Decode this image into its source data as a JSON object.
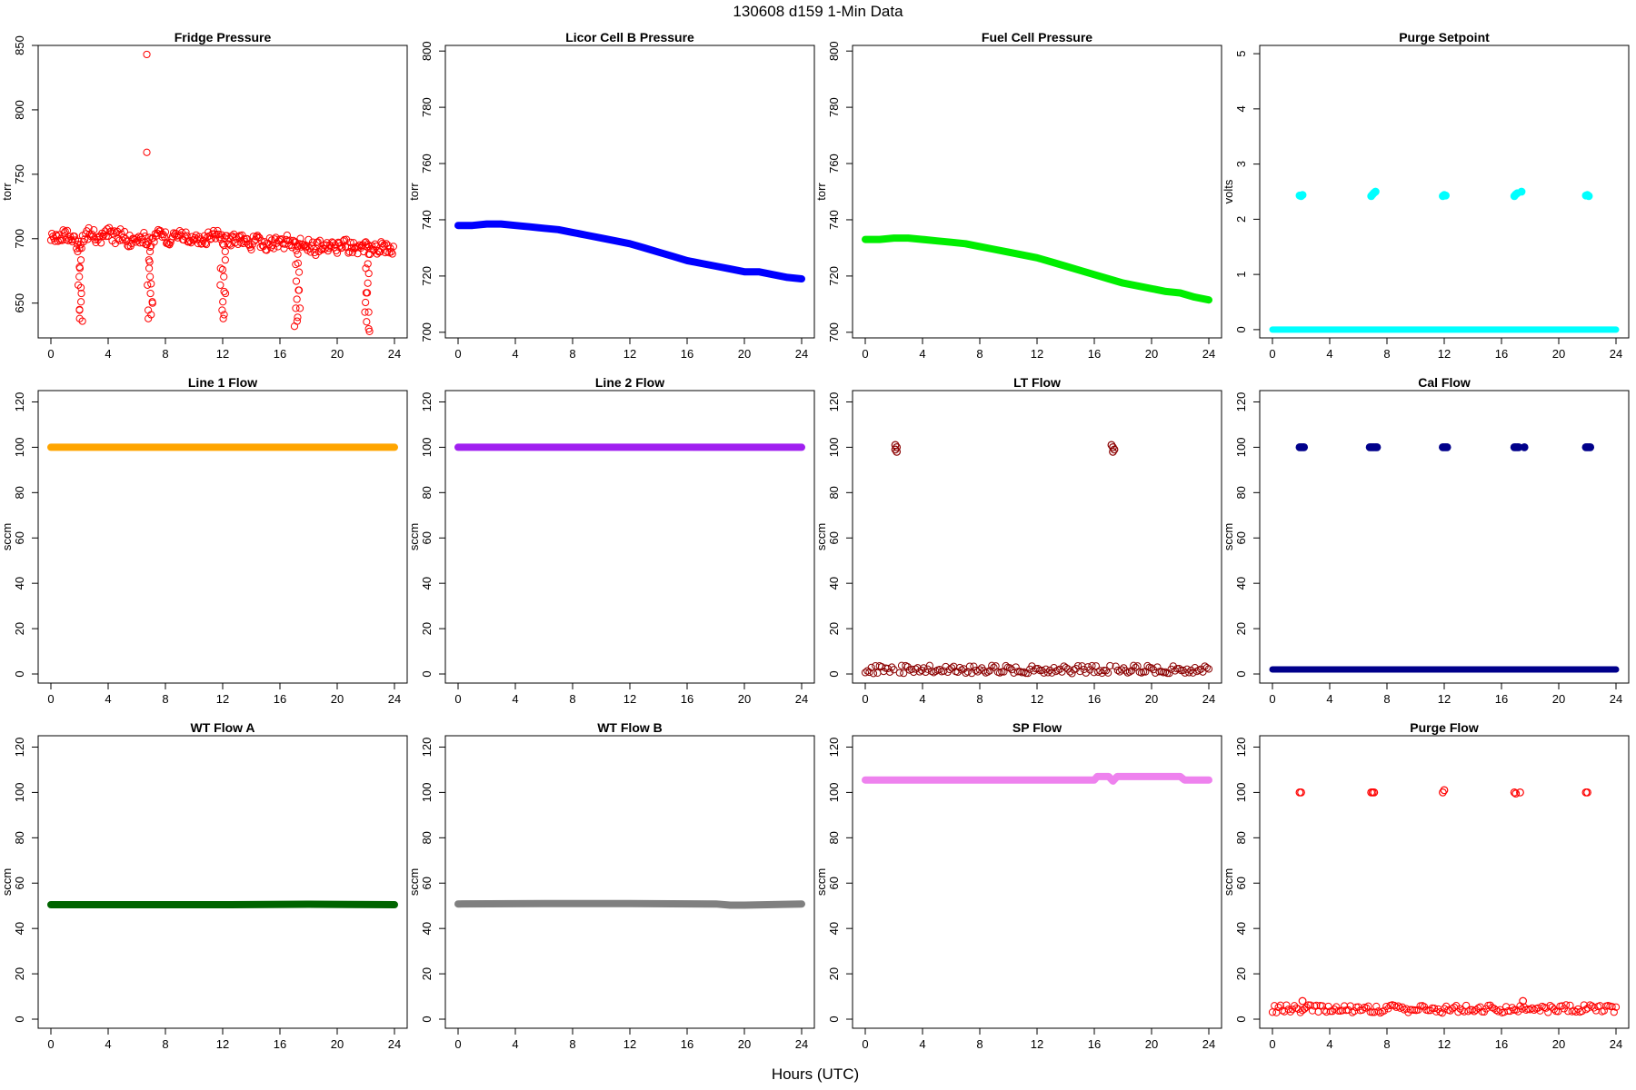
{
  "figure_title": "130608    d159    1-Min Data",
  "x_axis_label": "Hours (UTC)",
  "chart_data": [
    {
      "type": "scatter",
      "title": "Fridge Pressure",
      "ylabel": "torr",
      "color": "#ff0000",
      "marker": "open",
      "xlim": [
        0,
        24
      ],
      "ylim": [
        623,
        850
      ],
      "xticks": [
        0,
        4,
        8,
        12,
        16,
        20,
        24
      ],
      "yticks": [
        650,
        700,
        750,
        800,
        850
      ],
      "series": [
        {
          "x": [
            0.0,
            0.5,
            1.0,
            1.5,
            2.0,
            2.5,
            3.0,
            3.5,
            4.0,
            4.5,
            5.0,
            5.5,
            6.0,
            6.5,
            7.0,
            7.5,
            8.0,
            8.5,
            9.0,
            9.5,
            10.0,
            10.5,
            11.0,
            11.5,
            12.0,
            12.5,
            13.0,
            13.5,
            14.0,
            14.5,
            15.0,
            15.5,
            16.0,
            16.5,
            17.0,
            17.5,
            18.0,
            18.5,
            19.0,
            19.5,
            20.0,
            20.5,
            21.0,
            21.5,
            22.0,
            22.5,
            23.0,
            23.5,
            24.0,
            2.0,
            2.1,
            2.0,
            2.2,
            6.9,
            7.0,
            7.1,
            7.0,
            12.0,
            12.1,
            12.1,
            17.1,
            17.3,
            17.4,
            17.2,
            22.0,
            22.1,
            22.2,
            22.2,
            6.7,
            6.7
          ],
          "y": [
            702,
            699,
            703,
            700,
            694,
            704,
            702,
            699,
            705,
            701,
            703,
            698,
            702,
            700,
            697,
            704,
            701,
            699,
            703,
            700,
            702,
            698,
            701,
            703,
            699,
            697,
            700,
            698,
            696,
            699,
            694,
            697,
            695,
            698,
            693,
            697,
            695,
            692,
            696,
            694,
            692,
            695,
            693,
            691,
            694,
            690,
            693,
            691,
            694,
            678,
            662,
            645,
            636,
            682,
            665,
            650,
            641,
            676,
            659,
            641,
            680,
            660,
            646,
            636,
            677,
            658,
            643,
            630,
            843,
            767
          ]
        }
      ]
    },
    {
      "type": "line",
      "title": "Licor Cell B Pressure",
      "ylabel": "torr",
      "color": "#0000ff",
      "xlim": [
        0,
        24
      ],
      "ylim": [
        698,
        802
      ],
      "xticks": [
        0,
        4,
        8,
        12,
        16,
        20,
        24
      ],
      "yticks": [
        700,
        720,
        740,
        760,
        780,
        800
      ],
      "series": [
        {
          "x": [
            0,
            1,
            2,
            3,
            4,
            5,
            6,
            7,
            8,
            9,
            10,
            11,
            12,
            13,
            14,
            15,
            16,
            17,
            18,
            19,
            20,
            21,
            22,
            23,
            24
          ],
          "y": [
            738,
            738,
            738.5,
            738.5,
            738,
            737.5,
            737,
            736.5,
            735.5,
            734.5,
            733.5,
            732.5,
            731.5,
            730,
            728.5,
            727,
            725.5,
            724.5,
            723.5,
            722.5,
            721.5,
            721.5,
            720.5,
            719.5,
            719
          ]
        }
      ]
    },
    {
      "type": "line",
      "title": "Fuel Cell Pressure",
      "ylabel": "torr",
      "color": "#00ee00",
      "xlim": [
        0,
        24
      ],
      "ylim": [
        698,
        802
      ],
      "xticks": [
        0,
        4,
        8,
        12,
        16,
        20,
        24
      ],
      "yticks": [
        700,
        720,
        740,
        760,
        780,
        800
      ],
      "series": [
        {
          "x": [
            0,
            1,
            2,
            3,
            4,
            5,
            6,
            7,
            8,
            9,
            10,
            11,
            12,
            13,
            14,
            15,
            16,
            17,
            18,
            19,
            20,
            21,
            22,
            23,
            24
          ],
          "y": [
            733,
            733,
            733.5,
            733.5,
            733,
            732.5,
            732,
            731.5,
            730.5,
            729.5,
            728.5,
            727.5,
            726.5,
            725,
            723.5,
            722,
            720.5,
            719,
            717.5,
            716.5,
            715.5,
            714.5,
            714,
            712.5,
            711.5
          ]
        }
      ]
    },
    {
      "type": "scatter",
      "title": "Purge Setpoint",
      "ylabel": "volts",
      "color": "#00ffff",
      "marker": "filled",
      "xlim": [
        0,
        24
      ],
      "ylim": [
        -0.15,
        5.15
      ],
      "xticks": [
        0,
        4,
        8,
        12,
        16,
        20,
        24
      ],
      "yticks": [
        0,
        1,
        2,
        3,
        4,
        5
      ],
      "series": [
        {
          "x": [
            1.9,
            2.0,
            2.1,
            6.9,
            7.0,
            7.1,
            7.2,
            11.9,
            12.0,
            12.1,
            16.9,
            17.0,
            17.1,
            17.4,
            21.9,
            22.0,
            22.1
          ],
          "y": [
            2.43,
            2.42,
            2.44,
            2.42,
            2.45,
            2.48,
            2.5,
            2.42,
            2.44,
            2.43,
            2.42,
            2.45,
            2.47,
            2.5,
            2.43,
            2.44,
            2.42
          ]
        }
      ],
      "baseline": {
        "y": 0,
        "x": [
          0,
          24
        ]
      }
    },
    {
      "type": "line",
      "title": "Line 1 Flow",
      "ylabel": "sccm",
      "color": "#ffa500",
      "xlim": [
        0,
        24
      ],
      "ylim": [
        -4,
        125
      ],
      "xticks": [
        0,
        4,
        8,
        12,
        16,
        20,
        24
      ],
      "yticks": [
        0,
        20,
        40,
        60,
        80,
        100,
        120
      ],
      "series": [
        {
          "x": [
            0,
            24
          ],
          "y": [
            100,
            100
          ]
        }
      ]
    },
    {
      "type": "line",
      "title": "Line 2 Flow",
      "ylabel": "sccm",
      "color": "#a020f0",
      "xlim": [
        0,
        24
      ],
      "ylim": [
        -4,
        125
      ],
      "xticks": [
        0,
        4,
        8,
        12,
        16,
        20,
        24
      ],
      "yticks": [
        0,
        20,
        40,
        60,
        80,
        100,
        120
      ],
      "series": [
        {
          "x": [
            0,
            24
          ],
          "y": [
            100,
            100
          ]
        }
      ]
    },
    {
      "type": "scatter",
      "title": "LT Flow",
      "ylabel": "sccm",
      "color": "#8b0000",
      "marker": "open",
      "xlim": [
        0,
        24
      ],
      "ylim": [
        -4,
        125
      ],
      "xticks": [
        0,
        4,
        8,
        12,
        16,
        20,
        24
      ],
      "yticks": [
        0,
        20,
        40,
        60,
        80,
        100,
        120
      ],
      "series": [
        {
          "x": [
            2.1,
            2.2,
            2.2,
            2.1,
            17.2,
            17.3,
            17.3,
            17.4
          ],
          "y": [
            101,
            100,
            98,
            99,
            101,
            100,
            98,
            99
          ]
        }
      ],
      "baseline": {
        "y": 2,
        "x": [
          0,
          24
        ],
        "segments": [
          [
            0,
            2.0
          ],
          [
            2.4,
            17.1
          ],
          [
            17.5,
            24
          ]
        ]
      }
    },
    {
      "type": "scatter",
      "title": "Cal Flow",
      "ylabel": "sccm",
      "color": "#00008b",
      "marker": "filled",
      "xlim": [
        0,
        24
      ],
      "ylim": [
        -4,
        125
      ],
      "xticks": [
        0,
        4,
        8,
        12,
        16,
        20,
        24
      ],
      "yticks": [
        0,
        20,
        40,
        60,
        80,
        100,
        120
      ],
      "series": [
        {
          "x": [
            1.9,
            2.0,
            2.1,
            2.2,
            6.8,
            6.9,
            7.0,
            7.1,
            7.2,
            7.3,
            11.9,
            12.0,
            12.1,
            12.2,
            16.9,
            17.0,
            17.1,
            17.2,
            17.6,
            21.9,
            22.0,
            22.1,
            22.2
          ],
          "y": [
            100,
            100,
            100,
            100,
            100,
            100,
            100,
            100,
            100,
            100,
            100,
            100,
            100,
            100,
            100,
            100,
            100,
            100,
            100,
            100,
            100,
            100,
            100
          ]
        }
      ],
      "baseline": {
        "y": 2,
        "x": [
          0,
          24
        ]
      }
    },
    {
      "type": "scatter",
      "title": "WT Flow A",
      "ylabel": "sccm",
      "color": "#006400",
      "marker": "filled",
      "xlim": [
        0,
        24
      ],
      "ylim": [
        -4,
        125
      ],
      "xticks": [
        0,
        4,
        8,
        12,
        16,
        20,
        24
      ],
      "yticks": [
        0,
        20,
        40,
        60,
        80,
        100,
        120
      ],
      "series": [
        {
          "x": [
            0,
            6,
            12,
            18,
            24
          ],
          "y": [
            50.5,
            50.5,
            50.5,
            50.7,
            50.5
          ]
        }
      ]
    },
    {
      "type": "scatter",
      "title": "WT Flow B",
      "ylabel": "sccm",
      "color": "#808080",
      "marker": "filled",
      "xlim": [
        0,
        24
      ],
      "ylim": [
        -4,
        125
      ],
      "xticks": [
        0,
        4,
        8,
        12,
        16,
        20,
        24
      ],
      "yticks": [
        0,
        20,
        40,
        60,
        80,
        100,
        120
      ],
      "series": [
        {
          "x": [
            0,
            6,
            12,
            18,
            19,
            20,
            24
          ],
          "y": [
            50.8,
            51,
            51,
            50.8,
            50.3,
            50.3,
            50.8
          ]
        }
      ]
    },
    {
      "type": "scatter",
      "title": "SP Flow",
      "ylabel": "sccm",
      "color": "#ee82ee",
      "marker": "filled",
      "xlim": [
        0,
        24
      ],
      "ylim": [
        -4,
        125
      ],
      "xticks": [
        0,
        4,
        8,
        12,
        16,
        20,
        24
      ],
      "yticks": [
        0,
        20,
        40,
        60,
        80,
        100,
        120
      ],
      "series": [
        {
          "x": [
            0,
            4,
            8,
            12,
            16,
            16.2,
            17,
            17.3,
            17.6,
            18,
            20,
            22,
            22.3,
            23,
            24
          ],
          "y": [
            105.5,
            105.5,
            105.5,
            105.5,
            105.5,
            107,
            107,
            105,
            107,
            107,
            107,
            107,
            105.5,
            105.5,
            105.5
          ]
        }
      ]
    },
    {
      "type": "scatter",
      "title": "Purge Flow",
      "ylabel": "sccm",
      "color": "#ff0000",
      "marker": "open",
      "xlim": [
        0,
        24
      ],
      "ylim": [
        -4,
        125
      ],
      "xticks": [
        0,
        4,
        8,
        12,
        16,
        20,
        24
      ],
      "yticks": [
        0,
        20,
        40,
        60,
        80,
        100,
        120
      ],
      "series": [
        {
          "x": [
            1.9,
            2.0,
            6.9,
            7.0,
            7.1,
            11.9,
            12.0,
            16.9,
            17.0,
            17.3,
            21.9,
            22.0,
            2.1,
            17.5
          ],
          "y": [
            100,
            100,
            100,
            100,
            100,
            100,
            101,
            100,
            99.5,
            100,
            100,
            100,
            8,
            8
          ]
        }
      ],
      "baseline": {
        "y": 4.5,
        "x": [
          0,
          24
        ]
      }
    }
  ]
}
